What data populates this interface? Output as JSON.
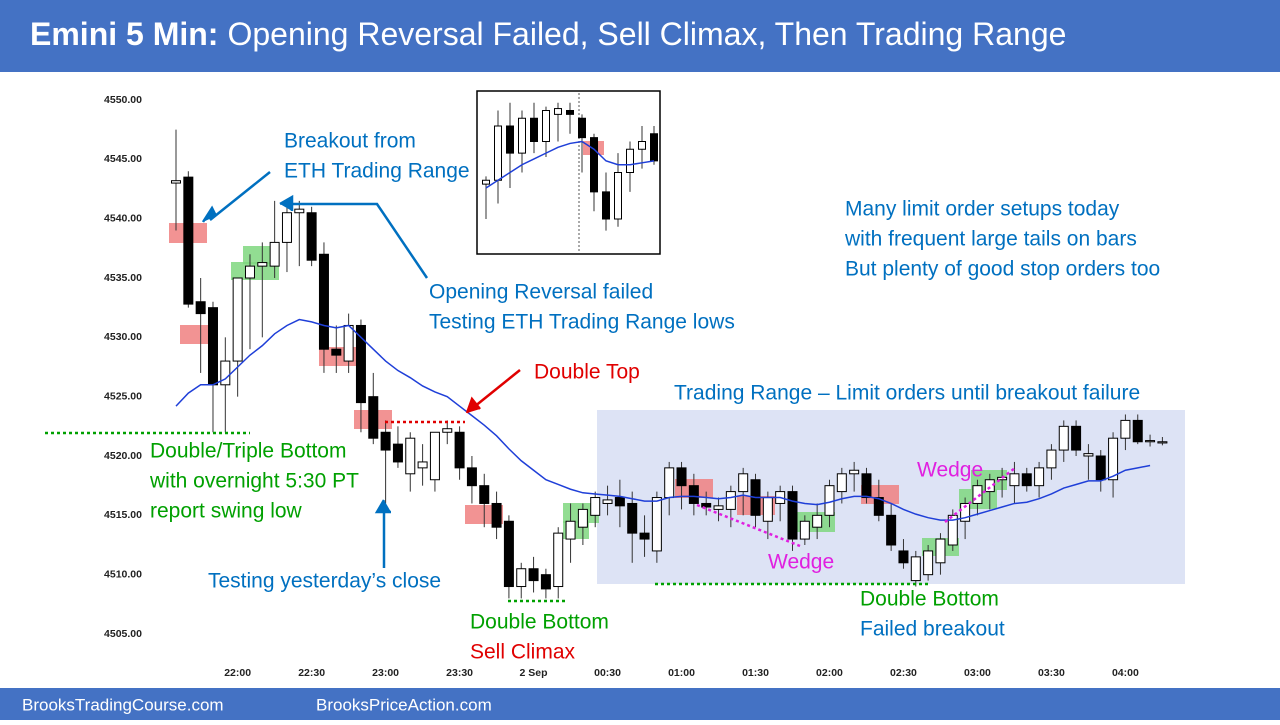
{
  "chart_data": [
    {
      "type": "candlestick",
      "title": {
        "bold": "Emini 5 Min:",
        "rest": "Opening Reversal Failed, Sell Climax, Then Trading Range"
      },
      "categories": [
        null,
        null,
        null,
        null,
        null,
        "22:00",
        null,
        null,
        null,
        null,
        null,
        "22:30",
        null,
        null,
        null,
        null,
        null,
        "23:00",
        null,
        null,
        null,
        null,
        null,
        "23:30",
        null,
        null,
        null,
        null,
        null,
        "2 Sep",
        null,
        null,
        null,
        null,
        null,
        "00:30",
        null,
        null,
        null,
        null,
        null,
        "01:00",
        null,
        null,
        null,
        null,
        null,
        "01:30",
        null,
        null,
        null,
        null,
        null,
        "02:00",
        null,
        null,
        null,
        null,
        null,
        "02:30",
        null,
        null,
        null,
        null,
        null,
        "03:00",
        null,
        null,
        null,
        null,
        null,
        "03:30",
        null,
        null,
        null,
        null,
        null,
        "04:00",
        null,
        null,
        null
      ],
      "open": [
        4543,
        4543.5,
        4533,
        4532.5,
        4526,
        4528,
        4535,
        4536,
        4536,
        4538,
        4540.5,
        4540.5,
        4537,
        4529,
        4528,
        4531,
        4525,
        4522,
        4521,
        4518.5,
        4519,
        4518,
        4522,
        4522,
        4519,
        4517.5,
        4516,
        4514.5,
        4509,
        4510.5,
        4510,
        4509,
        4513,
        4514,
        4515,
        4516,
        4516.5,
        4516,
        4513.5,
        4512,
        4516.5,
        4519,
        4517.5,
        4516,
        4515.5,
        4515.5,
        4517,
        4518,
        4514.5,
        4516,
        4517,
        4513,
        4514,
        4515,
        4517,
        4518.5,
        4518.5,
        4516.5,
        4515,
        4512,
        4509.5,
        4510,
        4511,
        4512.5,
        4514.5,
        4516,
        4517,
        4518,
        4517.5,
        4518.5,
        4517.5,
        4519,
        4520.5,
        4522.5,
        4520,
        4520,
        4518,
        4521.5,
        4523,
        4521.2,
        4521.2
      ],
      "high": [
        4547.5,
        4544,
        4535,
        4533,
        4530,
        4535,
        4537,
        4538,
        4541.5,
        4541,
        4541.5,
        4541,
        4538,
        4531,
        4532,
        4531.5,
        4527,
        4523,
        4522.5,
        4522,
        4521,
        4522,
        4523,
        4522.5,
        4520,
        4518.5,
        4517,
        4515,
        4511,
        4511.5,
        4510.5,
        4514,
        4516,
        4516,
        4517,
        4517.5,
        4518,
        4517,
        4515,
        4517,
        4519.5,
        4519.5,
        4518.5,
        4517,
        4516.5,
        4517.5,
        4519,
        4518.5,
        4517,
        4517.5,
        4517.5,
        4515,
        4516,
        4518,
        4519,
        4519.5,
        4519,
        4518,
        4516,
        4513,
        4512,
        4512.5,
        4513.5,
        4515.5,
        4516.5,
        4518,
        4518.5,
        4519,
        4519.5,
        4519,
        4519.5,
        4521,
        4523,
        4523,
        4521,
        4520.5,
        4522,
        4523.5,
        4523.5,
        4521.8,
        4521.6
      ],
      "low": [
        4539,
        4532.5,
        4527,
        4522,
        4522,
        4525,
        4529,
        4530,
        4535,
        4535.5,
        4536,
        4536,
        4527,
        4527,
        4527,
        4522,
        4521,
        4516,
        4519,
        4517,
        4517.5,
        4517,
        4521,
        4518,
        4516,
        4514,
        4513,
        4508,
        4508,
        4508.5,
        4508,
        4508,
        4511,
        4512.5,
        4514,
        4515,
        4514,
        4511,
        4511.5,
        4511,
        4515,
        4515.5,
        4515,
        4515,
        4514.5,
        4514,
        4515,
        4514,
        4513,
        4514.5,
        4512,
        4512.5,
        4513,
        4514,
        4516,
        4517,
        4516,
        4514.5,
        4512,
        4510.5,
        4509,
        4509.5,
        4510,
        4512,
        4513,
        4515,
        4515.5,
        4516.5,
        4516,
        4517,
        4516.5,
        4518,
        4519.5,
        4520,
        4518,
        4517,
        4516.5,
        4520.5,
        4521,
        4520.8,
        4520.9
      ],
      "close": [
        4543.2,
        4532.8,
        4532,
        4526,
        4528,
        4535,
        4536,
        4536.3,
        4538,
        4540.5,
        4540.8,
        4536.5,
        4529,
        4528.5,
        4531,
        4524.5,
        4521.5,
        4520.5,
        4519.5,
        4521.5,
        4519.5,
        4522,
        4522.3,
        4519,
        4517.5,
        4516,
        4514,
        4509,
        4510.5,
        4509.5,
        4508.8,
        4513.5,
        4514.5,
        4515.5,
        4516.5,
        4516.3,
        4515.8,
        4513.5,
        4513,
        4516.5,
        4519,
        4517.5,
        4516,
        4515.7,
        4515.8,
        4517,
        4518.5,
        4515,
        4516.5,
        4517,
        4513,
        4514.5,
        4515,
        4517.5,
        4518.5,
        4518.8,
        4516.5,
        4515,
        4512.5,
        4511,
        4511.5,
        4512,
        4513,
        4515,
        4516,
        4517.5,
        4518,
        4518.2,
        4518.5,
        4517.5,
        4519,
        4520.5,
        4522.5,
        4520.5,
        4520.2,
        4518,
        4521.5,
        4523,
        4521.2,
        4521.3,
        4521.2
      ],
      "ema": {
        "color": "#1f3fd8",
        "values": [
          4524.2,
          4525.3,
          4526,
          4526,
          4526.5,
          4527.5,
          4528.5,
          4529.3,
          4530.3,
          4531,
          4531.5,
          4531.3,
          4531,
          4530.8,
          4531,
          4530,
          4529,
          4528,
          4527.2,
          4526.6,
          4525.9,
          4525.4,
          4525,
          4524.2,
          4523.4,
          4522.6,
          4521.7,
          4520.6,
          4519.6,
          4518.8,
          4518,
          4517.6,
          4517.2,
          4516.9,
          4516.8,
          4516.7,
          4516.6,
          4516.4,
          4516.2,
          4516.2,
          4516.5,
          4516.6,
          4516.6,
          4516.5,
          4516.4,
          4516.5,
          4516.7,
          4516.5,
          4516.5,
          4516.5,
          4516.2,
          4516,
          4515.9,
          4516.1,
          4516.4,
          4516.6,
          4516.6,
          4516.4,
          4516,
          4515.5,
          4515.1,
          4514.8,
          4514.6,
          4514.6,
          4514.8,
          4515.1,
          4515.4,
          4515.7,
          4516,
          4516.1,
          4516.4,
          4516.8,
          4517.3,
          4517.6,
          4517.9,
          4517.9,
          4518.3,
          4518.8,
          4519,
          4519.2,
          null
        ]
      },
      "ylim": [
        4505,
        4550
      ],
      "yticks": [
        {
          "value": 4505,
          "label": "4505.00"
        },
        {
          "value": 4510,
          "label": "4510.00"
        },
        {
          "value": 4515,
          "label": "4515.00"
        },
        {
          "value": 4520,
          "label": "4520.00"
        },
        {
          "value": 4525,
          "label": "4525.00"
        },
        {
          "value": 4530,
          "label": "4530.00"
        },
        {
          "value": 4535,
          "label": "4535.00"
        },
        {
          "value": 4540,
          "label": "4540.00"
        },
        {
          "value": 4545,
          "label": "4545.00"
        },
        {
          "value": 4550,
          "label": "4550.00"
        }
      ],
      "annotations": [
        {
          "color": "#0070c0",
          "lines": [
            "Breakout from",
            "ETH Trading Range"
          ]
        },
        {
          "color": "#0070c0",
          "lines": [
            "Opening Reversal failed",
            "Testing ETH Trading Range lows"
          ]
        },
        {
          "color": "#0070c0",
          "lines": [
            "Many limit order setups today",
            "with frequent large tails on bars",
            "But plenty of good stop orders too"
          ]
        },
        {
          "color": "#e00000",
          "lines": [
            "Double Top"
          ]
        },
        {
          "color": "#0070c0",
          "lines": [
            "Trading Range – Limit orders until breakout failure"
          ]
        },
        {
          "color": "#00a000",
          "lines": [
            "Double/Triple Bottom",
            "with overnight 5:30 PT",
            "report swing low"
          ]
        },
        {
          "color": "#0070c0",
          "lines": [
            "Testing yesterday’s close"
          ]
        },
        {
          "color": "#e020e0",
          "lines": [
            "Wedge"
          ]
        },
        {
          "color": "#e020e0",
          "lines": [
            "Wedge"
          ]
        },
        {
          "color": "#00a000",
          "lines": [
            "Double Bottom"
          ]
        },
        {
          "color": "#e00000",
          "lines": [
            "Sell Climax"
          ]
        },
        {
          "color": "#00a000",
          "lines": [
            "Double Bottom"
          ]
        },
        {
          "color": "#0070c0",
          "lines": [
            "Failed breakout"
          ]
        }
      ]
    },
    {
      "type": "candlestick",
      "open": [
        4537,
        4538,
        4552,
        4545,
        4554,
        4548,
        4555,
        4556,
        4554,
        4549,
        4535,
        4528,
        4540,
        4546,
        4550
      ],
      "high": [
        4539,
        4556,
        4558,
        4556,
        4558,
        4557,
        4558,
        4558,
        4555,
        4550,
        4540,
        4545,
        4548,
        4552,
        4552
      ],
      "low": [
        4528,
        4532,
        4536,
        4540,
        4545,
        4544,
        4548,
        4550,
        4540,
        4530,
        4525,
        4526,
        4535,
        4541,
        4542
      ],
      "close": [
        4538,
        4552,
        4545,
        4554,
        4548,
        4556,
        4556.5,
        4555,
        4549,
        4535,
        4528,
        4540,
        4546,
        4548,
        4543
      ],
      "ema": {
        "color": "#1f3fd8",
        "values": [
          4536,
          4538,
          4540,
          4542,
          4543.5,
          4545,
          4546.5,
          4547.5,
          4548,
          4546,
          4543,
          4542,
          4542,
          4542.5,
          4543
        ]
      },
      "ylim": [
        4520,
        4560
      ]
    }
  ],
  "footer": [
    "BrooksTradingCourse.com",
    "BrooksPriceAction.com"
  ]
}
